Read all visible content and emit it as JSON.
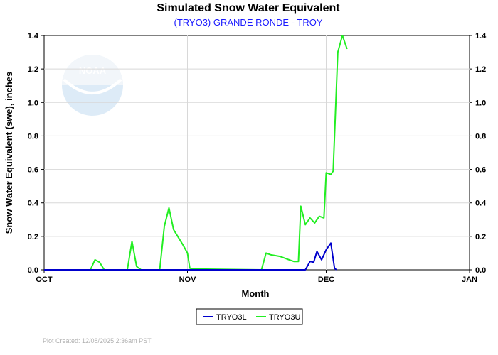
{
  "chart_data": {
    "type": "line",
    "title": "Simulated Snow Water Equivalent",
    "subtitle": "(TRYO3) GRANDE RONDE - TROY",
    "xlabel": "Month",
    "ylabel": "Snow Water Equivalent (swe),  inches",
    "xlim": [
      0,
      92
    ],
    "ylim": [
      0,
      1.4
    ],
    "x_ticks": [
      {
        "x": 0,
        "label": "OCT"
      },
      {
        "x": 31,
        "label": "NOV"
      },
      {
        "x": 61,
        "label": "DEC"
      },
      {
        "x": 92,
        "label": "JAN"
      }
    ],
    "y_ticks": [
      "0.0",
      "0.2",
      "0.4",
      "0.6",
      "0.8",
      "1.0",
      "1.2",
      "1.4"
    ],
    "grid": true,
    "legend_position": "bottom-center",
    "series": [
      {
        "name": "TRYO3L",
        "color": "#0000cc",
        "points": [
          [
            0,
            0
          ],
          [
            56.5,
            0
          ],
          [
            57.5,
            0.05
          ],
          [
            58.3,
            0.045
          ],
          [
            59,
            0.11
          ],
          [
            60,
            0.06
          ],
          [
            61,
            0.12
          ],
          [
            62,
            0.16
          ],
          [
            62.8,
            0.01
          ],
          [
            63.2,
            0
          ]
        ]
      },
      {
        "name": "TRYO3U",
        "color": "#22ee22",
        "points": [
          [
            0,
            0
          ],
          [
            10,
            0
          ],
          [
            11,
            0.06
          ],
          [
            12,
            0.045
          ],
          [
            13,
            0
          ],
          [
            18,
            0
          ],
          [
            19,
            0.17
          ],
          [
            20,
            0.02
          ],
          [
            21,
            0
          ],
          [
            25,
            0
          ],
          [
            26,
            0.26
          ],
          [
            27,
            0.37
          ],
          [
            28,
            0.24
          ],
          [
            30,
            0.15
          ],
          [
            31,
            0.1
          ],
          [
            31.5,
            0.01
          ],
          [
            32,
            0.005
          ],
          [
            47,
            0
          ],
          [
            48,
            0.1
          ],
          [
            49,
            0.09
          ],
          [
            51,
            0.08
          ],
          [
            53,
            0.06
          ],
          [
            54,
            0.05
          ],
          [
            55,
            0.05
          ],
          [
            55.5,
            0.38
          ],
          [
            56.5,
            0.27
          ],
          [
            57.5,
            0.31
          ],
          [
            58.5,
            0.28
          ],
          [
            59.5,
            0.32
          ],
          [
            60.5,
            0.31
          ],
          [
            61,
            0.58
          ],
          [
            62,
            0.57
          ],
          [
            62.5,
            0.59
          ],
          [
            63.5,
            1.3
          ],
          [
            64.5,
            1.4
          ],
          [
            65.5,
            1.32
          ]
        ]
      }
    ]
  },
  "footer": {
    "plot_created": "Plot Created:  12/08/2025 2:36am PST"
  },
  "watermark": {
    "logo_text": "NOAA"
  }
}
